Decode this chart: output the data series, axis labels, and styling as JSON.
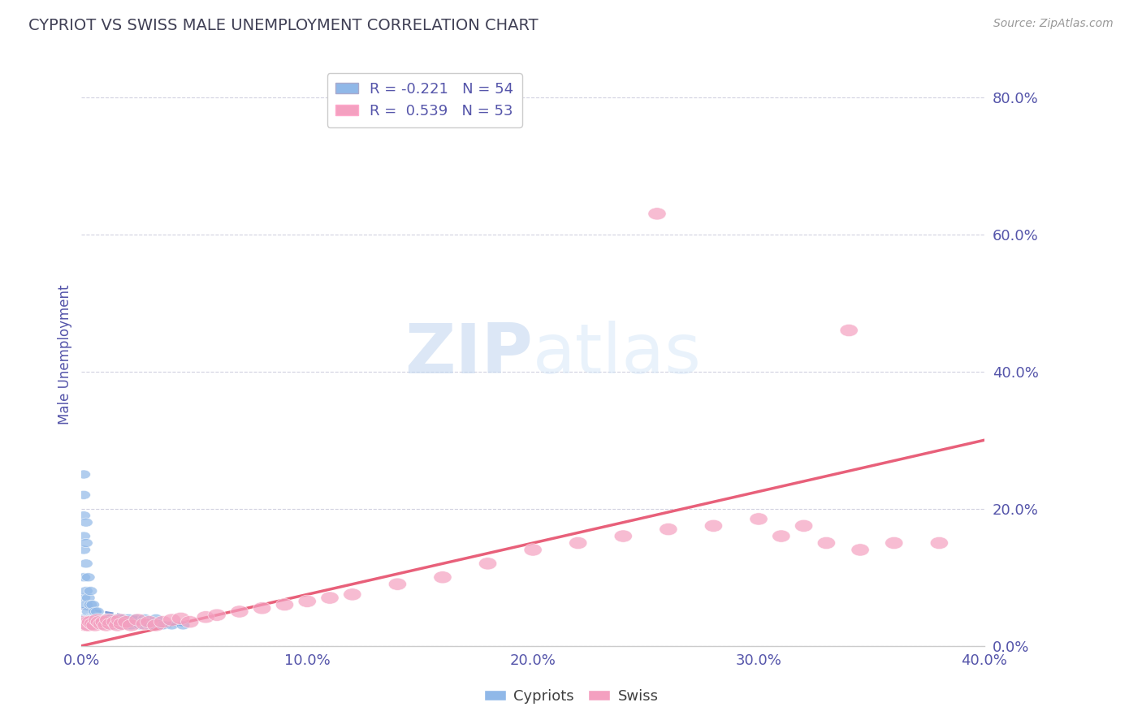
{
  "title": "CYPRIOT VS SWISS MALE UNEMPLOYMENT CORRELATION CHART",
  "source": "Source: ZipAtlas.com",
  "ylabel": "Male Unemployment",
  "xlim": [
    0.0,
    0.4
  ],
  "ylim": [
    0.0,
    0.85
  ],
  "yticks": [
    0.0,
    0.2,
    0.4,
    0.6,
    0.8
  ],
  "xticks": [
    0.0,
    0.1,
    0.2,
    0.3,
    0.4
  ],
  "legend_label_cypriots": "Cypriots",
  "legend_label_swiss": "Swiss",
  "cypriot_color": "#90b8e8",
  "swiss_color": "#f4a0c0",
  "cypriot_line_color": "#6888cc",
  "swiss_line_color": "#e8607a",
  "background_color": "#ffffff",
  "grid_color": "#ccccdd",
  "title_color": "#404055",
  "axis_label_color": "#5555aa",
  "tick_label_color": "#5555aa",
  "watermark_zip": "ZIP",
  "watermark_atlas": "atlas",
  "cypriot_R": -0.221,
  "cypriot_N": 54,
  "swiss_R": 0.539,
  "swiss_N": 53,
  "cypriot_x": [
    0.001,
    0.001,
    0.001,
    0.001,
    0.001,
    0.001,
    0.001,
    0.001,
    0.002,
    0.002,
    0.002,
    0.002,
    0.002,
    0.002,
    0.002,
    0.003,
    0.003,
    0.003,
    0.003,
    0.003,
    0.004,
    0.004,
    0.004,
    0.004,
    0.005,
    0.005,
    0.005,
    0.006,
    0.006,
    0.007,
    0.007,
    0.008,
    0.009,
    0.01,
    0.011,
    0.012,
    0.013,
    0.014,
    0.015,
    0.016,
    0.017,
    0.018,
    0.019,
    0.02,
    0.021,
    0.022,
    0.024,
    0.026,
    0.028,
    0.03,
    0.033,
    0.036,
    0.04,
    0.045
  ],
  "cypriot_y": [
    0.22,
    0.19,
    0.25,
    0.16,
    0.14,
    0.1,
    0.07,
    0.04,
    0.18,
    0.15,
    0.12,
    0.08,
    0.06,
    0.04,
    0.03,
    0.1,
    0.07,
    0.05,
    0.04,
    0.03,
    0.08,
    0.06,
    0.04,
    0.03,
    0.06,
    0.04,
    0.03,
    0.05,
    0.03,
    0.05,
    0.03,
    0.04,
    0.04,
    0.03,
    0.04,
    0.03,
    0.04,
    0.03,
    0.04,
    0.03,
    0.04,
    0.03,
    0.04,
    0.03,
    0.04,
    0.03,
    0.04,
    0.03,
    0.04,
    0.03,
    0.04,
    0.03,
    0.03,
    0.03
  ],
  "swiss_x": [
    0.001,
    0.002,
    0.003,
    0.003,
    0.004,
    0.005,
    0.006,
    0.007,
    0.008,
    0.009,
    0.01,
    0.011,
    0.012,
    0.013,
    0.015,
    0.016,
    0.017,
    0.018,
    0.02,
    0.022,
    0.025,
    0.028,
    0.03,
    0.033,
    0.036,
    0.04,
    0.044,
    0.048,
    0.055,
    0.06,
    0.07,
    0.08,
    0.09,
    0.1,
    0.11,
    0.12,
    0.14,
    0.16,
    0.18,
    0.2,
    0.22,
    0.24,
    0.26,
    0.28,
    0.3,
    0.31,
    0.32,
    0.33,
    0.345,
    0.36,
    0.255,
    0.34,
    0.38
  ],
  "swiss_y": [
    0.035,
    0.03,
    0.035,
    0.03,
    0.035,
    0.032,
    0.03,
    0.038,
    0.035,
    0.032,
    0.035,
    0.03,
    0.038,
    0.032,
    0.035,
    0.03,
    0.038,
    0.032,
    0.035,
    0.03,
    0.038,
    0.032,
    0.035,
    0.03,
    0.035,
    0.038,
    0.04,
    0.035,
    0.042,
    0.045,
    0.05,
    0.055,
    0.06,
    0.065,
    0.07,
    0.075,
    0.09,
    0.1,
    0.12,
    0.14,
    0.15,
    0.16,
    0.17,
    0.175,
    0.185,
    0.16,
    0.175,
    0.15,
    0.14,
    0.15,
    0.63,
    0.46,
    0.15
  ],
  "swiss_line_x": [
    0.0,
    0.4
  ],
  "swiss_line_y": [
    0.0,
    0.3
  ],
  "cyp_line_x": [
    0.0,
    0.045
  ],
  "cyp_line_y": [
    0.055,
    0.03
  ]
}
